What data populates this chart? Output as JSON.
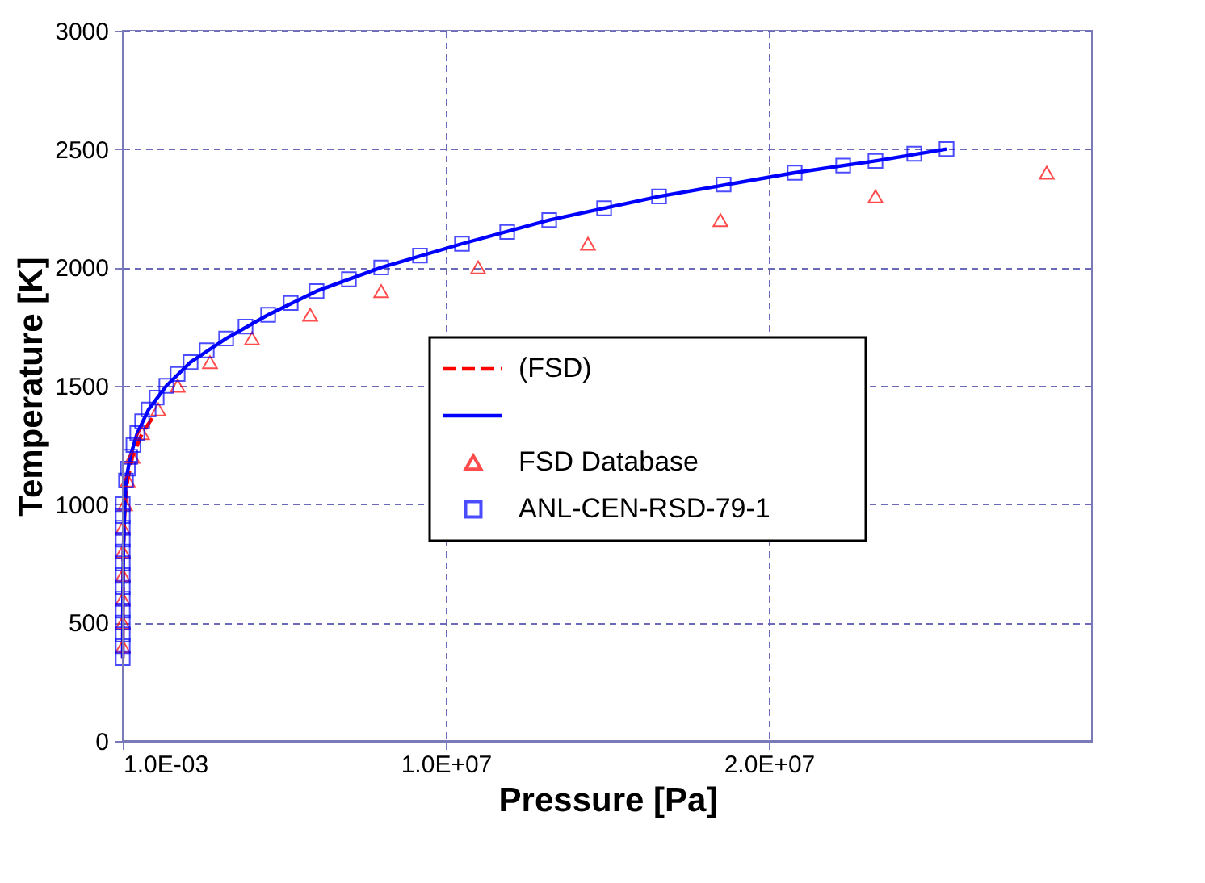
{
  "chart_data": {
    "type": "line",
    "xlabel": "Pressure [Pa]",
    "ylabel": "Temperature [K]",
    "xlim": [
      0.001,
      30000000
    ],
    "xticks": [
      {
        "value": 0.001,
        "label": "1.0E-03"
      },
      {
        "value": 10000000,
        "label": "1.0E+07"
      },
      {
        "value": 20000000,
        "label": "2.0E+07"
      }
    ],
    "ylim": [
      0,
      3000
    ],
    "yticks": [
      0,
      500,
      1000,
      1500,
      2000,
      2500,
      3000
    ],
    "grid": true,
    "legend": "right",
    "series": [
      {
        "name": "(FSD)",
        "line_style": "dashed",
        "marker": "none",
        "color": "#ff0000",
        "x": [
          0.001,
          2000,
          5000,
          10000,
          20000,
          40000,
          70000,
          150000,
          300000,
          600000,
          1000000
        ],
        "values": [
          350,
          500,
          600,
          700,
          800,
          900,
          1000,
          1100,
          1200,
          1300,
          1380
        ]
      },
      {
        "line_style": "solid",
        "marker": "none",
        "color": "#0000ff",
        "x": [
          0.001,
          5000,
          20000,
          50000,
          100000,
          230000,
          450000,
          800000,
          1350000,
          2100000,
          3200000,
          4500000,
          6000000,
          8000000,
          10500000,
          13200000,
          16600000,
          20800000,
          23300000,
          25500000
        ],
        "values": [
          350,
          600,
          800,
          950,
          1100,
          1200,
          1300,
          1400,
          1500,
          1600,
          1700,
          1800,
          1900,
          2000,
          2100,
          2200,
          2300,
          2400,
          2450,
          2500
        ]
      },
      {
        "name": "FSD Database",
        "type": "scatter",
        "marker": "triangle",
        "color": "#ff0000",
        "x": [
          0.001,
          0.001,
          0.001,
          0.001,
          0.001,
          0.001,
          70000,
          150000,
          300000,
          600000,
          1100000,
          1700000,
          2700000,
          4000000,
          5800000,
          8000000,
          11000000,
          14400000,
          18500000,
          23300000,
          28600000
        ],
        "values": [
          400,
          500,
          600,
          700,
          800,
          900,
          1000,
          1100,
          1200,
          1300,
          1400,
          1500,
          1600,
          1700,
          1800,
          1900,
          2000,
          2100,
          2200,
          2300,
          2400
        ]
      },
      {
        "name": "ANL-CEN-RSD-79-1",
        "type": "scatter",
        "marker": "square",
        "color": "#0000ff",
        "x": [
          0.001,
          0.001,
          0.001,
          0.001,
          0.001,
          0.001,
          0.001,
          0.001,
          0.001,
          0.001,
          0.001,
          0.001,
          0.001,
          0.001,
          100000,
          160000,
          230000,
          330000,
          450000,
          600000,
          800000,
          1050000,
          1350000,
          1700000,
          2100000,
          2600000,
          3200000,
          3800000,
          4500000,
          5200000,
          6000000,
          7000000,
          8000000,
          9200000,
          10500000,
          11900000,
          13200000,
          14900000,
          16600000,
          18600000,
          20800000,
          22300000,
          23300000,
          24500000,
          25500000
        ],
        "values": [
          350,
          400,
          450,
          500,
          550,
          600,
          650,
          700,
          750,
          800,
          850,
          900,
          950,
          1000,
          1100,
          1150,
          1200,
          1250,
          1300,
          1350,
          1400,
          1450,
          1500,
          1550,
          1600,
          1650,
          1700,
          1750,
          1800,
          1850,
          1900,
          1950,
          2000,
          2050,
          2100,
          2150,
          2200,
          2250,
          2300,
          2350,
          2400,
          2430,
          2450,
          2480,
          2500
        ]
      }
    ]
  }
}
